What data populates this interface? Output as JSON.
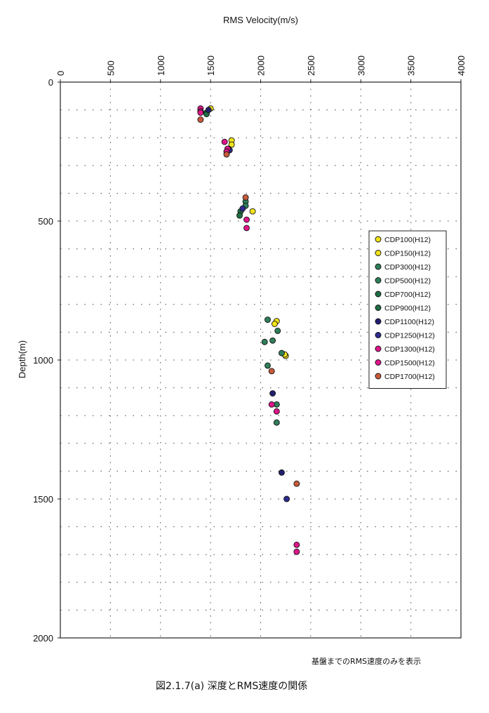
{
  "chart_data": {
    "type": "scatter",
    "title": "RMS Velocity(m/s)",
    "xlabel": "RMS Velocity(m/s)",
    "ylabel": "Depth(m)",
    "xlim": [
      0,
      4000
    ],
    "ylim": [
      0,
      2000
    ],
    "y_inverted": true,
    "x_axis_position": "top",
    "x_ticks": [
      "0",
      "500",
      "1000",
      "1500",
      "2000",
      "2500",
      "3000",
      "3500",
      "4000"
    ],
    "y_ticks": [
      "0",
      "500",
      "1000",
      "1500",
      "2000"
    ],
    "grid": true,
    "legend_position": "right",
    "series": [
      {
        "name": "CDP100(H12)",
        "color": "#f2e21a",
        "points": [
          [
            1500,
            95
          ],
          [
            1710,
            210
          ],
          [
            1920,
            465
          ],
          [
            2160,
            860
          ],
          [
            2250,
            985
          ]
        ]
      },
      {
        "name": "CDP150(H12)",
        "color": "#f2e21a",
        "points": [
          [
            1710,
            225
          ],
          [
            2140,
            870
          ],
          [
            2240,
            980
          ]
        ]
      },
      {
        "name": "CDP300(H12)",
        "color": "#2f7f5a",
        "points": [
          [
            1850,
            430
          ],
          [
            1850,
            445
          ]
        ]
      },
      {
        "name": "CDP500(H12)",
        "color": "#2f7f5a",
        "points": [
          [
            1460,
            110
          ],
          [
            2070,
            855
          ],
          [
            2170,
            895
          ],
          [
            2120,
            930
          ],
          [
            2040,
            935
          ],
          [
            2210,
            975
          ],
          [
            2070,
            1020
          ],
          [
            2160,
            1160
          ],
          [
            2160,
            1225
          ]
        ]
      },
      {
        "name": "CDP700(H12)",
        "color": "#1f6e45",
        "points": [
          [
            1460,
            115
          ],
          [
            1800,
            465
          ],
          [
            1790,
            480
          ]
        ]
      },
      {
        "name": "CDP900(H12)",
        "color": "#1f6e45",
        "points": [
          [
            1680,
            240
          ]
        ]
      },
      {
        "name": "CDP1100(H12)",
        "color": "#232070",
        "points": [
          [
            1480,
            100
          ],
          [
            2120,
            1120
          ],
          [
            2210,
            1405
          ]
        ]
      },
      {
        "name": "CDP1250(H12)",
        "color": "#2e2b8e",
        "points": [
          [
            1690,
            245
          ],
          [
            1820,
            455
          ],
          [
            2260,
            1500
          ]
        ]
      },
      {
        "name": "CDP1300(H12)",
        "color": "#e0158a",
        "points": [
          [
            1400,
            95
          ],
          [
            1400,
            105
          ],
          [
            1640,
            215
          ],
          [
            1670,
            240
          ],
          [
            1860,
            495
          ],
          [
            1860,
            525
          ],
          [
            2110,
            1160
          ],
          [
            2160,
            1185
          ],
          [
            2360,
            1665
          ],
          [
            2360,
            1690
          ]
        ]
      },
      {
        "name": "CDP1500(H12)",
        "color": "#e0158a",
        "points": [
          [
            1400,
            110
          ],
          [
            1660,
            250
          ]
        ]
      },
      {
        "name": "CDP1700(H12)",
        "color": "#c85a3c",
        "points": [
          [
            1400,
            135
          ],
          [
            1660,
            260
          ],
          [
            1850,
            415
          ],
          [
            2110,
            1040
          ],
          [
            2360,
            1445
          ]
        ]
      }
    ]
  },
  "notes": {
    "bottom_note": "基盤までのRMS速度のみを表示",
    "figure_caption": "図2.1.7(a) 深度とRMS速度の関係"
  }
}
